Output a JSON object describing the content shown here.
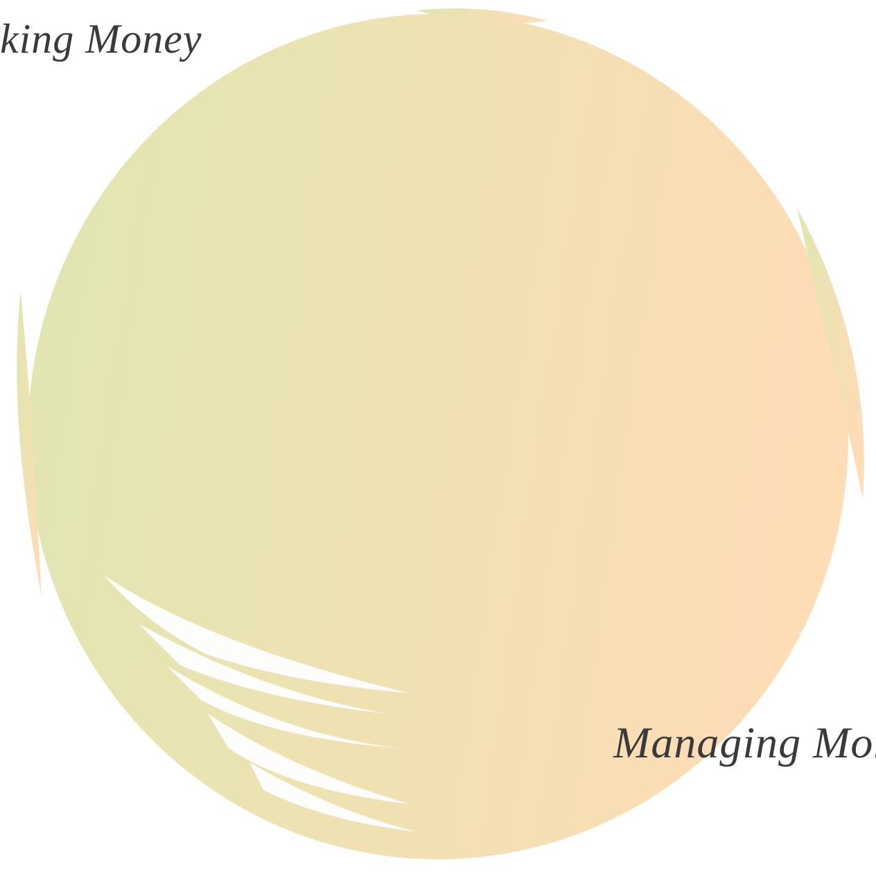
{
  "labels": {
    "top_left": "king Money",
    "bottom_right": "Managing Mon"
  }
}
